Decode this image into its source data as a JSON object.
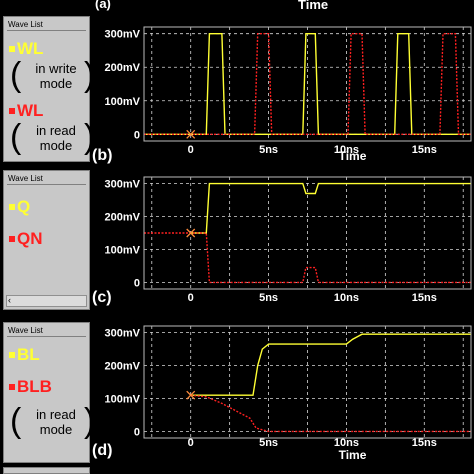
{
  "top_strip": {
    "panel_letter": "(a)",
    "xlabel": "Time"
  },
  "colors": {
    "yellow": "#ffff33",
    "red": "#ff2020",
    "marker": "#ff8c3c"
  },
  "panels": [
    {
      "wave_list_title": "Wave List",
      "signals": [
        {
          "name": "WL",
          "color": "#ffff33",
          "mode": "in write mode"
        },
        {
          "name": "WL",
          "color": "#ff2020",
          "mode": "in read mode"
        }
      ]
    },
    {
      "wave_list_title": "Wave List",
      "signals": [
        {
          "name": "Q",
          "color": "#ffff33"
        },
        {
          "name": "QN",
          "color": "#ff2020"
        }
      ]
    },
    {
      "wave_list_title": "Wave List",
      "signals": [
        {
          "name": "BL",
          "color": "#ffff33"
        },
        {
          "name": "BLB",
          "color": "#ff2020",
          "mode": "in read mode"
        }
      ]
    }
  ],
  "chart_data": [
    {
      "type": "line",
      "panel_letter": "(b)",
      "xlabel": "Time",
      "x_unit": "ns",
      "xlim": [
        -3,
        18
      ],
      "ylim": [
        -20,
        320
      ],
      "x_ticks": [
        0,
        5,
        10,
        15
      ],
      "x_tick_labels": [
        "0",
        "5ns",
        "10ns",
        "15ns"
      ],
      "y_ticks": [
        0,
        100,
        200,
        300
      ],
      "y_tick_labels": [
        "0",
        "100mV",
        "200mV",
        "300mV"
      ],
      "grid": true,
      "marker": [
        0,
        0
      ],
      "series": [
        {
          "name": "WL",
          "color": "#ffff33",
          "dashed": false,
          "x": [
            -3,
            1.0,
            1.2,
            2.0,
            2.2,
            7.2,
            7.4,
            8.0,
            8.2,
            13.1,
            13.3,
            14.0,
            14.2,
            18
          ],
          "y": [
            0,
            0,
            300,
            300,
            0,
            0,
            300,
            300,
            0,
            0,
            300,
            300,
            0,
            0
          ]
        },
        {
          "name": "WL",
          "color": "#ff2020",
          "dashed": true,
          "x": [
            -3,
            4.1,
            4.3,
            5.0,
            5.2,
            10.1,
            10.3,
            11.0,
            11.2,
            16.0,
            16.2,
            17.0,
            17.2,
            18
          ],
          "y": [
            0,
            0,
            300,
            300,
            0,
            0,
            300,
            300,
            0,
            0,
            300,
            300,
            0,
            0
          ]
        }
      ]
    },
    {
      "type": "line",
      "panel_letter": "(c)",
      "xlabel": "",
      "x_unit": "ns",
      "xlim": [
        -3,
        18
      ],
      "ylim": [
        -20,
        320
      ],
      "x_ticks": [
        0,
        5,
        10,
        15
      ],
      "x_tick_labels": [
        "0",
        "5ns",
        "10ns",
        "15ns"
      ],
      "y_ticks": [
        0,
        100,
        200,
        300
      ],
      "y_tick_labels": [
        "0",
        "100mV",
        "200mV",
        "300mV"
      ],
      "grid": true,
      "marker": [
        0,
        150
      ],
      "series": [
        {
          "name": "Q",
          "color": "#ffff33",
          "dashed": false,
          "x": [
            0,
            1.0,
            1.2,
            7.2,
            7.4,
            8.0,
            8.2,
            18
          ],
          "y": [
            150,
            150,
            300,
            300,
            270,
            270,
            300,
            300
          ]
        },
        {
          "name": "QN",
          "color": "#ff2020",
          "dashed": true,
          "x": [
            -3,
            0,
            1.0,
            1.2,
            7.2,
            7.4,
            8.0,
            8.2,
            18
          ],
          "y": [
            150,
            150,
            150,
            0,
            0,
            45,
            45,
            0,
            0
          ]
        }
      ]
    },
    {
      "type": "line",
      "panel_letter": "(d)",
      "xlabel": "Time",
      "x_unit": "ns",
      "xlim": [
        -3,
        18
      ],
      "ylim": [
        -20,
        320
      ],
      "x_ticks": [
        0,
        5,
        10,
        15
      ],
      "x_tick_labels": [
        "0",
        "5ns",
        "10ns",
        "15ns"
      ],
      "y_ticks": [
        0,
        100,
        200,
        300
      ],
      "y_tick_labels": [
        "0",
        "100mV",
        "200mV",
        "300mV"
      ],
      "grid": true,
      "marker": [
        0,
        110
      ],
      "series": [
        {
          "name": "BL",
          "color": "#ffff33",
          "dashed": false,
          "x": [
            0,
            4.0,
            4.3,
            4.6,
            5.0,
            10.0,
            10.4,
            11.0,
            18
          ],
          "y": [
            110,
            110,
            200,
            250,
            265,
            265,
            280,
            295,
            295
          ]
        },
        {
          "name": "BLB",
          "color": "#ff2020",
          "dashed": true,
          "x": [
            0,
            1.0,
            2.0,
            3.0,
            3.8,
            4.2,
            5.0,
            18
          ],
          "y": [
            110,
            105,
            85,
            60,
            40,
            10,
            0,
            0
          ]
        }
      ]
    }
  ]
}
